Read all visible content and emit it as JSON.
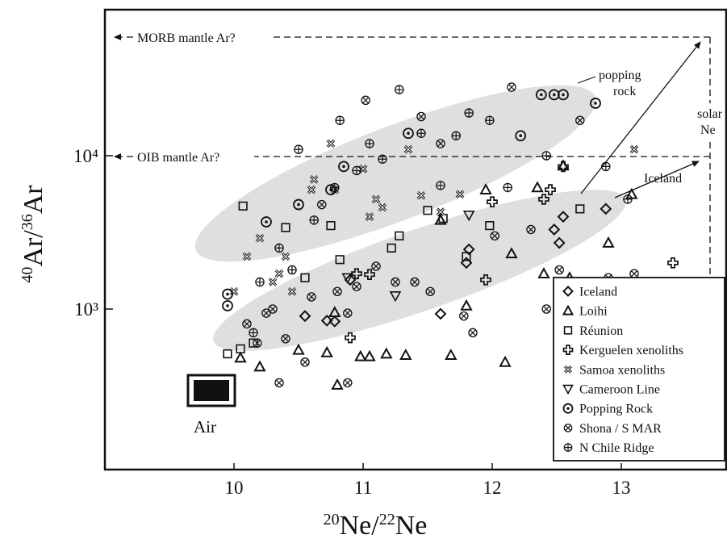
{
  "chart_data": {
    "type": "scatter",
    "xlabel": "20Ne/22Ne",
    "ylabel": "40Ar/36Ar",
    "xlim": [
      9.0,
      13.8
    ],
    "ylim": [
      200,
      40000
    ],
    "y_scale": "log",
    "x_ticks": [
      10,
      11,
      12,
      13
    ],
    "x_tick_labels": [
      "10",
      "11",
      "12",
      "13"
    ],
    "y_ticks": [
      1000,
      10000
    ],
    "y_tick_labels": [
      "10³",
      "10⁴"
    ],
    "grid": false,
    "legend_position": "bottom-right",
    "annotations": {
      "morb": "MORB mantle Ar?",
      "oib": "OIB mantle Ar?",
      "popping_rock": [
        "popping",
        "rock"
      ],
      "solar_ne": [
        "solar",
        "Ne"
      ],
      "iceland": "Iceland",
      "air": "Air"
    },
    "reference_values": {
      "morb_ar": 40000,
      "oib_ar": 8000,
      "solar_ne": 13.8,
      "air": {
        "x": 9.8,
        "y": 296
      }
    },
    "series": [
      {
        "name": "Iceland",
        "marker": "diamond",
        "x": [
          10.55,
          10.72,
          10.9,
          11.6,
          11.8,
          11.82,
          12.48,
          12.52,
          12.55,
          12.88,
          10.78
        ],
        "y": [
          900,
          840,
          1550,
          930,
          2000,
          2450,
          3300,
          2700,
          4000,
          4500,
          830
        ]
      },
      {
        "name": "Loihi",
        "marker": "triangle",
        "x": [
          10.05,
          10.2,
          10.5,
          10.72,
          10.8,
          10.98,
          11.05,
          11.18,
          11.33,
          11.68,
          11.8,
          12.1,
          12.15,
          12.4,
          12.55,
          12.9,
          13.08,
          10.78,
          11.95,
          11.6,
          12.6,
          12.35
        ],
        "y": [
          480,
          420,
          540,
          520,
          320,
          490,
          490,
          510,
          500,
          500,
          1050,
          450,
          2300,
          1700,
          8600,
          2700,
          5600,
          950,
          6000,
          3800,
          1600,
          6200
        ]
      },
      {
        "name": "Réunion",
        "marker": "square",
        "x": [
          9.95,
          10.05,
          10.07,
          10.4,
          10.55,
          10.75,
          10.82,
          11.22,
          11.28,
          11.5,
          11.62,
          11.8,
          11.98,
          12.68,
          10.15
        ],
        "y": [
          510,
          550,
          4700,
          3400,
          1600,
          3500,
          2100,
          2500,
          3000,
          4400,
          3900,
          2200,
          3500,
          4500,
          600
        ]
      },
      {
        "name": "Kerguelen xenoliths",
        "marker": "cross",
        "x": [
          10.95,
          11.05,
          11.95,
          12.0,
          12.4,
          12.45,
          12.55,
          13.4,
          10.9
        ],
        "y": [
          1700,
          1680,
          1550,
          5000,
          5200,
          6000,
          8500,
          2000,
          650
        ]
      },
      {
        "name": "Samoa xenoliths",
        "marker": "xsquare",
        "x": [
          10.0,
          10.1,
          10.2,
          10.35,
          10.4,
          10.6,
          10.62,
          10.75,
          10.78,
          11.0,
          11.05,
          11.1,
          11.15,
          11.35,
          11.45,
          11.6,
          11.75,
          10.45,
          10.3,
          13.1
        ],
        "y": [
          1300,
          2200,
          2900,
          1700,
          2200,
          6000,
          7000,
          12000,
          6000,
          8200,
          4000,
          5200,
          4600,
          11000,
          5500,
          4300,
          5600,
          1300,
          1500,
          11000
        ]
      },
      {
        "name": "Cameroon Line",
        "marker": "triangle-down",
        "x": [
          10.88,
          11.25,
          11.82
        ],
        "y": [
          1600,
          1220,
          4100
        ]
      },
      {
        "name": "Popping Rock",
        "marker": "circle-dot",
        "x": [
          9.95,
          9.95,
          10.25,
          10.5,
          10.75,
          10.85,
          11.35,
          12.22,
          12.38,
          12.48,
          12.55,
          12.8
        ],
        "y": [
          1050,
          1250,
          3700,
          4800,
          6000,
          8500,
          14000,
          13500,
          25000,
          25000,
          25000,
          22000
        ]
      },
      {
        "name": "Shona / S MAR",
        "marker": "circle-x",
        "x": [
          10.1,
          10.18,
          10.3,
          10.4,
          10.55,
          10.6,
          10.68,
          10.8,
          10.88,
          10.95,
          11.02,
          11.1,
          11.25,
          11.45,
          11.52,
          11.6,
          11.78,
          11.85,
          12.02,
          12.15,
          12.3,
          12.42,
          12.52,
          12.68,
          12.9,
          13.1,
          10.25,
          10.35,
          10.88,
          11.4
        ],
        "y": [
          800,
          600,
          1000,
          640,
          450,
          1200,
          4800,
          1300,
          330,
          1400,
          23000,
          1900,
          1500,
          18000,
          1300,
          12000,
          900,
          700,
          3000,
          28000,
          3300,
          1000,
          1800,
          17000,
          1600,
          1700,
          940,
          330,
          940,
          1500
        ]
      },
      {
        "name": "N Chile Ridge",
        "marker": "circle-plus",
        "x": [
          10.2,
          10.35,
          10.45,
          10.62,
          10.78,
          10.82,
          10.95,
          11.05,
          11.15,
          11.28,
          11.45,
          11.6,
          11.72,
          11.82,
          11.98,
          12.12,
          12.42,
          12.88,
          13.05,
          10.5,
          10.15
        ],
        "y": [
          1500,
          2500,
          1800,
          3800,
          6200,
          17000,
          8000,
          12000,
          9500,
          27000,
          14000,
          6400,
          13500,
          19000,
          17000,
          6200,
          10000,
          8500,
          5200,
          11000,
          700
        ]
      }
    ]
  }
}
